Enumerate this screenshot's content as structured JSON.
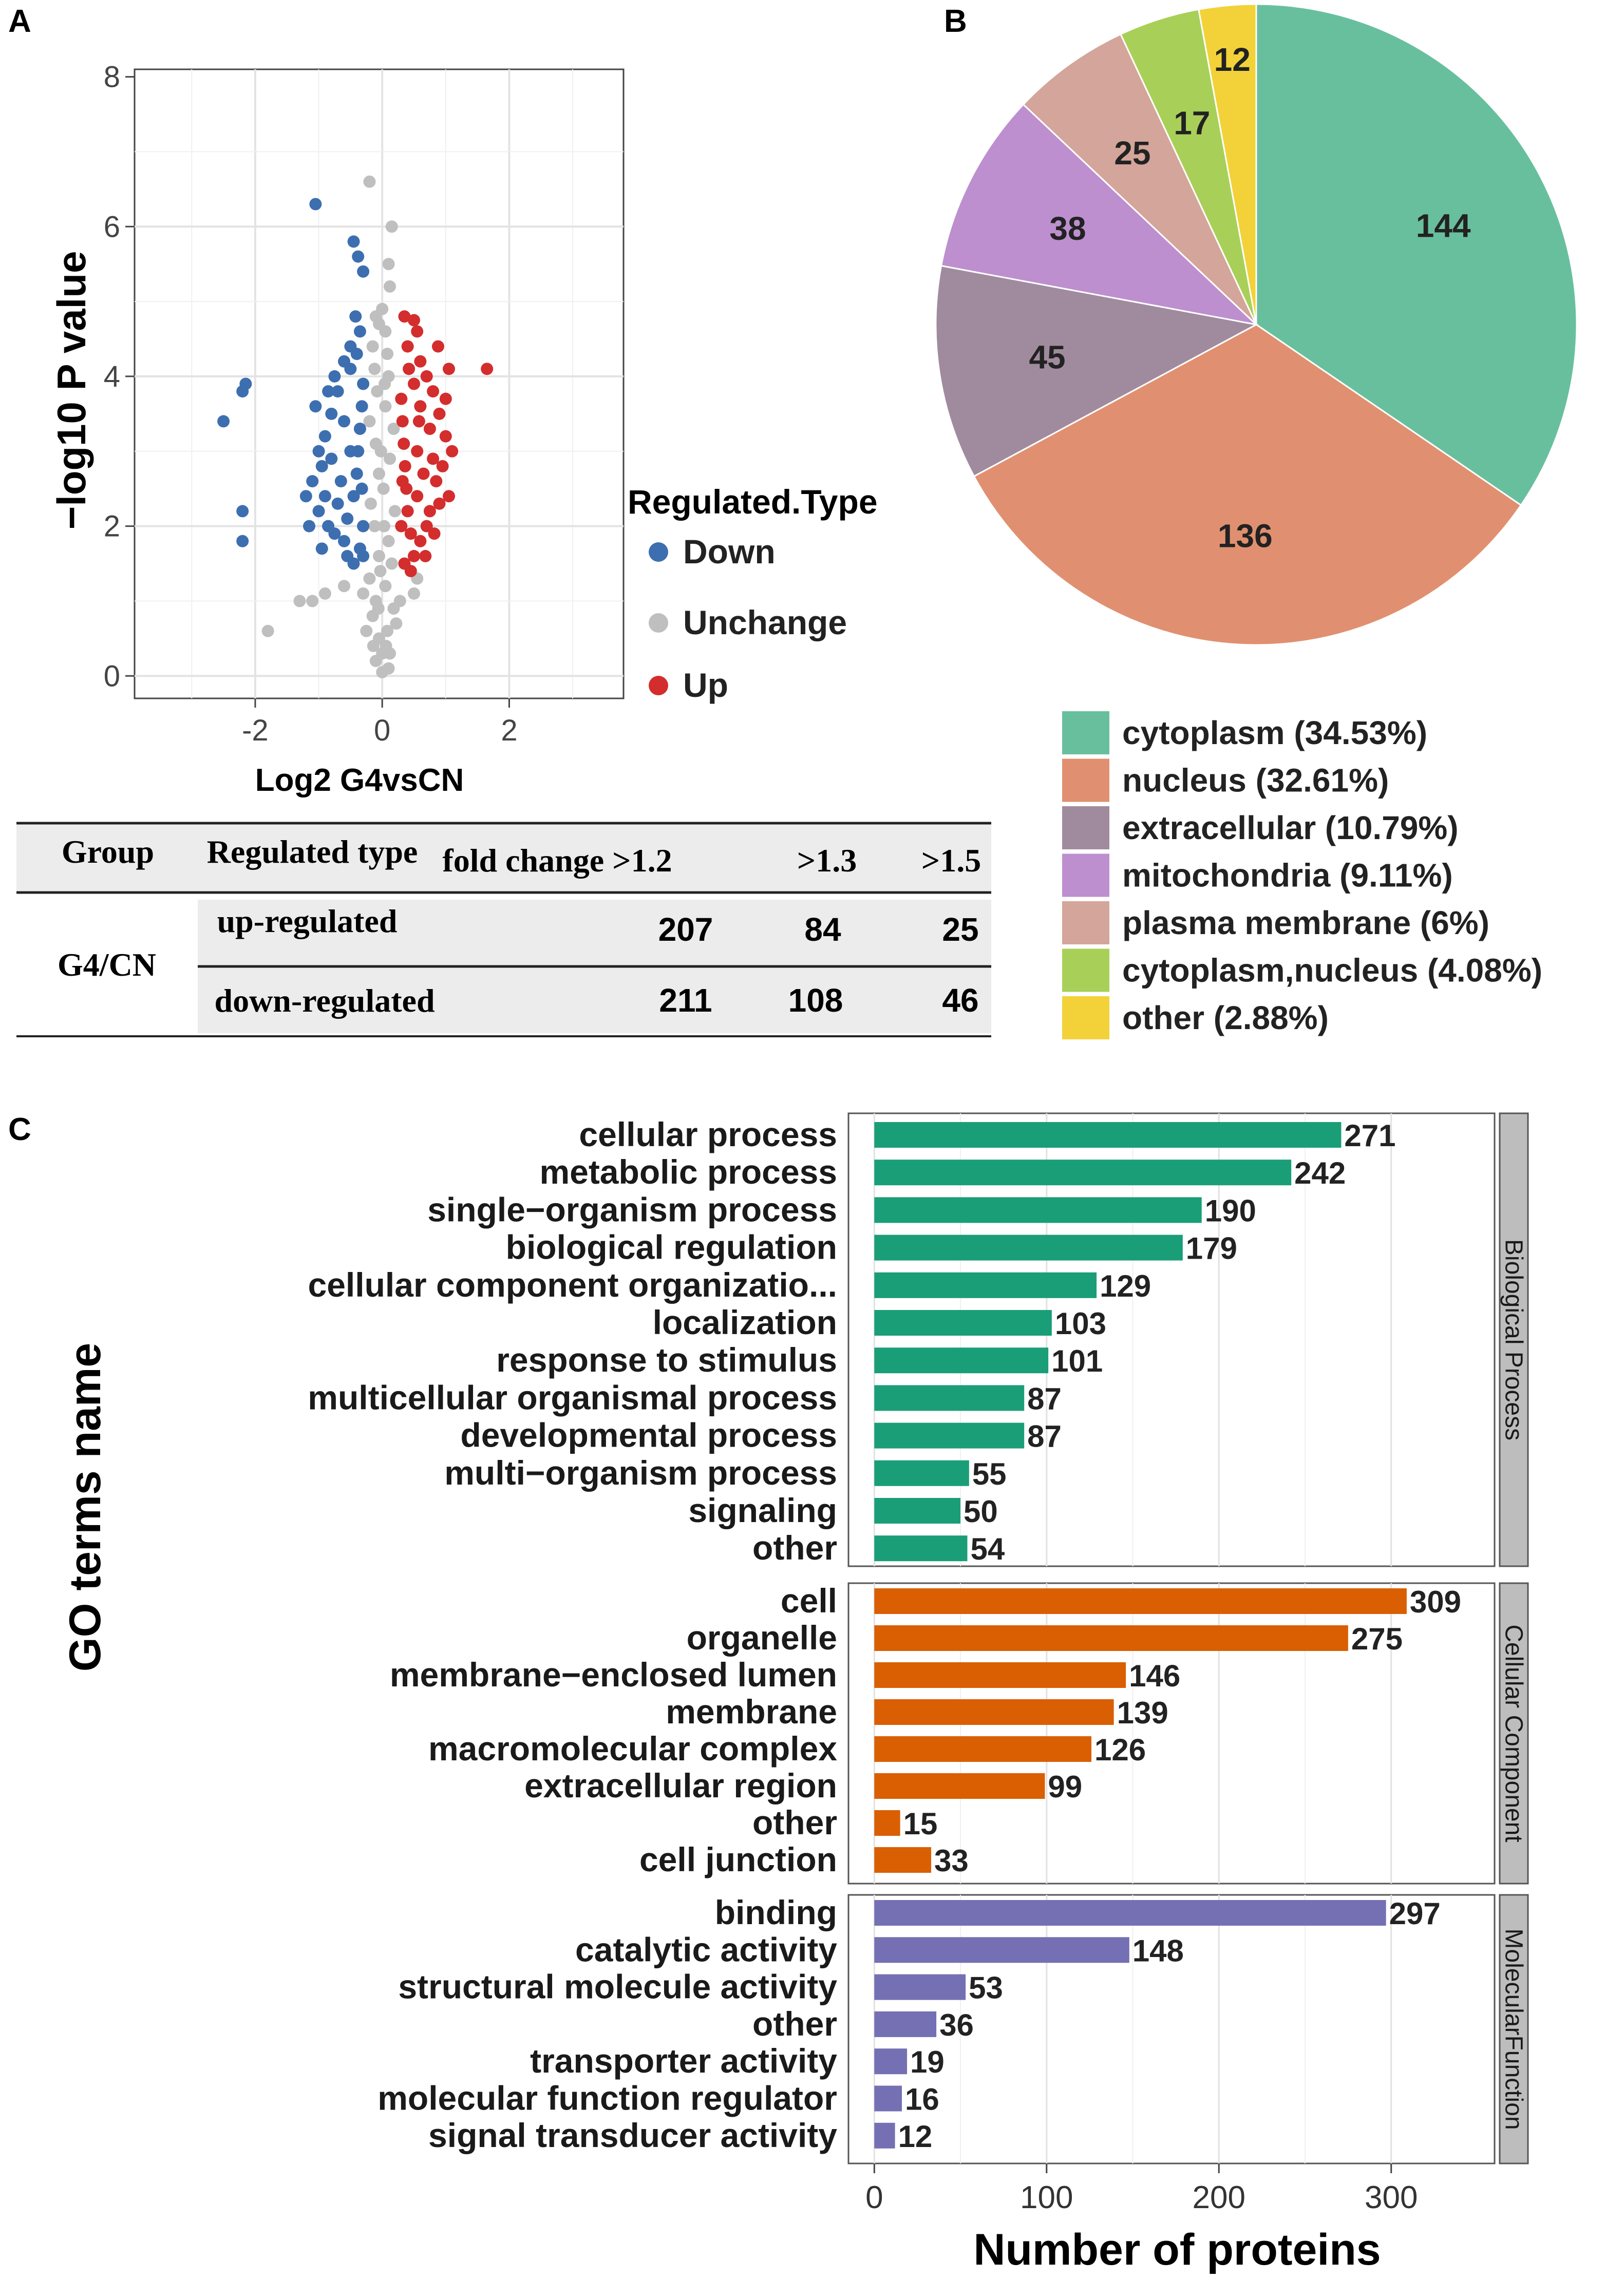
{
  "panel_letters": {
    "a": "A",
    "b": "B",
    "c": "C"
  },
  "chart_data": [
    {
      "id": "volcano",
      "type": "scatter",
      "xlabel": "Log2 G4vsCN",
      "ylabel": "−log10 P value",
      "xlim": [
        -3.9,
        3.8
      ],
      "ylim": [
        -0.3,
        8.1
      ],
      "xticks": [
        "-2",
        "0",
        "2"
      ],
      "xtick_values": [
        -2,
        0,
        2
      ],
      "yticks": [
        "0",
        "2",
        "4",
        "6",
        "8"
      ],
      "ytick_values": [
        0,
        2,
        4,
        6,
        8
      ],
      "grid": true,
      "legend_title": "Regulated.Type",
      "legend_position": "right",
      "series": [
        {
          "name": "Down",
          "color": "#3d6fb0",
          "points": [
            [
              -2.5,
              3.4
            ],
            [
              -2.2,
              3.8
            ],
            [
              -2.15,
              3.9
            ],
            [
              -2.2,
              2.2
            ],
            [
              -2.2,
              1.8
            ],
            [
              -1.05,
              6.3
            ],
            [
              -0.45,
              5.8
            ],
            [
              -0.38,
              5.6
            ],
            [
              -0.3,
              5.4
            ],
            [
              -0.42,
              4.8
            ],
            [
              -0.35,
              4.6
            ],
            [
              -0.5,
              4.4
            ],
            [
              -0.6,
              4.2
            ],
            [
              -0.7,
              3.8
            ],
            [
              -0.8,
              3.5
            ],
            [
              -0.9,
              3.2
            ],
            [
              -1.0,
              3.0
            ],
            [
              -0.95,
              2.8
            ],
            [
              -1.1,
              2.6
            ],
            [
              -1.2,
              2.4
            ],
            [
              -1.0,
              2.2
            ],
            [
              -0.85,
              2.0
            ],
            [
              -0.75,
              1.9
            ],
            [
              -0.6,
              1.8
            ],
            [
              -0.55,
              2.1
            ],
            [
              -0.45,
              2.4
            ],
            [
              -0.4,
              2.7
            ],
            [
              -0.38,
              3.0
            ],
            [
              -0.35,
              3.3
            ],
            [
              -0.32,
              3.6
            ],
            [
              -0.3,
              3.9
            ],
            [
              -0.5,
              3.0
            ],
            [
              -0.65,
              2.6
            ],
            [
              -0.7,
              2.3
            ],
            [
              -0.55,
              1.6
            ],
            [
              -0.45,
              1.5
            ],
            [
              -0.35,
              1.7
            ],
            [
              -0.3,
              2.0
            ],
            [
              -0.6,
              3.4
            ],
            [
              -0.8,
              2.9
            ],
            [
              -0.9,
              2.4
            ],
            [
              -1.05,
              3.6
            ],
            [
              -0.75,
              4.0
            ],
            [
              -0.5,
              4.1
            ],
            [
              -0.4,
              4.3
            ],
            [
              -1.15,
              2.0
            ],
            [
              -0.95,
              1.7
            ],
            [
              -0.85,
              3.8
            ],
            [
              -0.3,
              1.6
            ],
            [
              -0.32,
              2.5
            ]
          ]
        },
        {
          "name": "Unchange",
          "color": "#bfbfbf",
          "points": [
            [
              -0.2,
              6.6
            ],
            [
              0.15,
              6.0
            ],
            [
              0.1,
              5.5
            ],
            [
              0.12,
              5.2
            ],
            [
              -0.1,
              4.8
            ],
            [
              -0.05,
              4.7
            ],
            [
              0.05,
              4.6
            ],
            [
              -0.15,
              4.4
            ],
            [
              0.08,
              4.3
            ],
            [
              -0.12,
              4.1
            ],
            [
              0.1,
              4.0
            ],
            [
              -0.08,
              3.8
            ],
            [
              0.05,
              3.6
            ],
            [
              -0.2,
              3.4
            ],
            [
              0.18,
              3.3
            ],
            [
              -0.1,
              3.1
            ],
            [
              0.12,
              2.9
            ],
            [
              -0.05,
              2.7
            ],
            [
              0.02,
              2.5
            ],
            [
              -0.18,
              2.3
            ],
            [
              0.2,
              2.2
            ],
            [
              -0.12,
              2.0
            ],
            [
              0.1,
              1.8
            ],
            [
              -0.05,
              1.6
            ],
            [
              0.15,
              1.5
            ],
            [
              -0.2,
              1.3
            ],
            [
              0.05,
              1.2
            ],
            [
              -0.1,
              1.0
            ],
            [
              0.18,
              0.9
            ],
            [
              -0.15,
              0.8
            ],
            [
              0.08,
              0.6
            ],
            [
              -0.05,
              0.5
            ],
            [
              0.0,
              0.3
            ],
            [
              -0.1,
              0.2
            ],
            [
              0.1,
              0.1
            ],
            [
              0.0,
              0.05
            ],
            [
              -0.25,
              0.6
            ],
            [
              0.22,
              0.7
            ],
            [
              -0.3,
              1.1
            ],
            [
              0.28,
              1.0
            ],
            [
              -1.8,
              0.6
            ],
            [
              -1.3,
              1.0
            ],
            [
              -1.1,
              1.0
            ],
            [
              -0.9,
              1.1
            ],
            [
              0.5,
              1.1
            ],
            [
              0.55,
              1.3
            ],
            [
              -0.6,
              1.2
            ],
            [
              0.0,
              4.9
            ],
            [
              0.04,
              3.9
            ],
            [
              -0.02,
              3.0
            ],
            [
              0.03,
              2.0
            ],
            [
              -0.03,
              1.4
            ],
            [
              0.06,
              0.4
            ],
            [
              -0.06,
              0.9
            ],
            [
              0.12,
              0.3
            ],
            [
              -0.14,
              0.4
            ]
          ]
        },
        {
          "name": "Up",
          "color": "#d42d2d",
          "points": [
            [
              0.35,
              4.8
            ],
            [
              0.5,
              4.75
            ],
            [
              0.55,
              4.6
            ],
            [
              0.4,
              4.4
            ],
            [
              0.6,
              4.2
            ],
            [
              0.7,
              4.0
            ],
            [
              0.8,
              3.8
            ],
            [
              1.05,
              4.1
            ],
            [
              1.65,
              4.1
            ],
            [
              0.9,
              3.5
            ],
            [
              1.0,
              3.2
            ],
            [
              1.1,
              3.0
            ],
            [
              0.95,
              2.8
            ],
            [
              0.85,
              2.6
            ],
            [
              1.05,
              2.4
            ],
            [
              0.75,
              2.2
            ],
            [
              0.7,
              2.0
            ],
            [
              0.6,
              1.8
            ],
            [
              0.5,
              1.6
            ],
            [
              0.45,
              1.9
            ],
            [
              0.4,
              2.2
            ],
            [
              0.38,
              2.5
            ],
            [
              0.36,
              2.8
            ],
            [
              0.34,
              3.1
            ],
            [
              0.32,
              3.4
            ],
            [
              0.3,
              3.7
            ],
            [
              0.55,
              3.0
            ],
            [
              0.65,
              2.7
            ],
            [
              0.75,
              3.3
            ],
            [
              0.8,
              2.9
            ],
            [
              0.9,
              2.3
            ],
            [
              0.6,
              3.6
            ],
            [
              0.5,
              3.9
            ],
            [
              0.42,
              4.1
            ],
            [
              0.88,
              4.4
            ],
            [
              0.35,
              1.5
            ],
            [
              0.45,
              1.4
            ],
            [
              0.3,
              2.0
            ],
            [
              0.55,
              2.4
            ],
            [
              1.0,
              3.7
            ],
            [
              0.68,
              1.6
            ],
            [
              0.82,
              1.9
            ],
            [
              0.32,
              2.6
            ],
            [
              0.58,
              3.4
            ]
          ]
        }
      ]
    },
    {
      "id": "table",
      "type": "table",
      "headers": [
        "Group",
        "Regulated type",
        "fold change >1.2",
        ">1.3",
        ">1.5"
      ],
      "group": "G4/CN",
      "rows": [
        {
          "label": "up-regulated",
          "values": [
            "207",
            "84",
            "25"
          ]
        },
        {
          "label": "down-regulated",
          "values": [
            "211",
            "108",
            "46"
          ]
        }
      ]
    },
    {
      "id": "pie",
      "type": "pie",
      "slices": [
        {
          "label": "cytoplasm (34.53%)",
          "value": 144,
          "color": "#68bf9e"
        },
        {
          "label": "nucleus (32.61%)",
          "value": 136,
          "color": "#e09070"
        },
        {
          "label": "extracellular (10.79%)",
          "value": 45,
          "color": "#a08b9e"
        },
        {
          "label": "mitochondria (9.11%)",
          "value": 38,
          "color": "#bd8fcf"
        },
        {
          "label": "plasma membrane (6%)",
          "value": 25,
          "color": "#d4a59a"
        },
        {
          "label": "cytoplasm,nucleus (4.08%)",
          "value": 17,
          "color": "#a8d058"
        },
        {
          "label": "other (2.88%)",
          "value": 12,
          "color": "#f2d238"
        }
      ],
      "legend_position": "bottom"
    },
    {
      "id": "go",
      "type": "bar",
      "orientation": "horizontal",
      "xlabel": "Number of proteins",
      "ylabel": "GO terms name",
      "xlim": [
        -15,
        360
      ],
      "xticks": [
        "0",
        "100",
        "200",
        "300"
      ],
      "xtick_values": [
        0,
        100,
        200,
        300
      ],
      "grid": true,
      "series": [
        {
          "name": "Biological Process",
          "color": "#1a9e77",
          "categories": [
            "cellular process",
            "metabolic process",
            "single−organism process",
            "biological regulation",
            "cellular component organizatio...",
            "localization",
            "response to stimulus",
            "multicellular organismal process",
            "developmental process",
            "multi−organism process",
            "signaling",
            "other"
          ],
          "values": [
            271,
            242,
            190,
            179,
            129,
            103,
            101,
            87,
            87,
            55,
            50,
            54
          ]
        },
        {
          "name": "Cellular Component",
          "color": "#d95f02",
          "categories": [
            "cell",
            "organelle",
            "membrane−enclosed lumen",
            "membrane",
            "macromolecular complex",
            "extracellular region",
            "other",
            "cell junction"
          ],
          "values": [
            309,
            275,
            146,
            139,
            126,
            99,
            15,
            33
          ]
        },
        {
          "name": "MolecularFunction",
          "color": "#7570b3",
          "categories": [
            "binding",
            "catalytic activity",
            "structural molecule activity",
            "other",
            "transporter activity",
            "molecular function regulator",
            "signal transducer activity"
          ],
          "values": [
            297,
            148,
            53,
            36,
            19,
            16,
            12
          ]
        }
      ]
    }
  ]
}
